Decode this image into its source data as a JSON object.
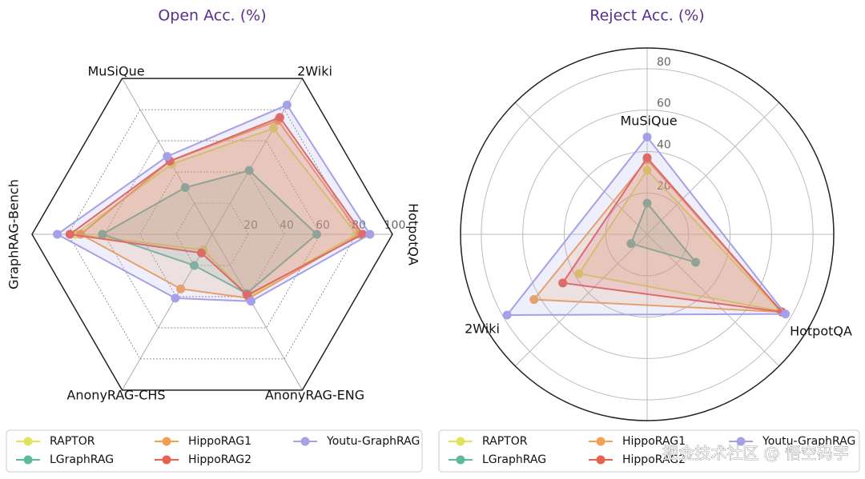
{
  "chart_data": [
    {
      "type": "radar",
      "title": "Open Acc. (%)",
      "grid_shape": "polygon",
      "categories": [
        "HotpotQA",
        "2Wiki",
        "MuSiQue",
        "GraphRAG-Bench",
        "AnonyRAG-CHS",
        "AnonyRAG-ENG"
      ],
      "rlim": [
        0,
        100
      ],
      "rticks": [
        20,
        40,
        60,
        80,
        100
      ],
      "legend": "bottom",
      "series": [
        {
          "name": "RAPTOR",
          "color": "#e2e35a",
          "values": [
            80,
            68,
            45,
            76,
            10,
            40
          ]
        },
        {
          "name": "LGraphRAG",
          "color": "#5fb8a0",
          "values": [
            58,
            41,
            30,
            61,
            20,
            38
          ]
        },
        {
          "name": "HippoRAG1",
          "color": "#f2a052",
          "values": [
            82,
            73,
            47,
            73,
            35,
            41
          ]
        },
        {
          "name": "HippoRAG2",
          "color": "#e8604e",
          "values": [
            83.5,
            75,
            47,
            79,
            12,
            39
          ]
        },
        {
          "name": "Youtu-GraphRAG",
          "color": "#a6a0e8",
          "values": [
            87.5,
            83,
            50,
            86,
            41,
            43
          ]
        }
      ]
    },
    {
      "type": "radar",
      "title": "Reject Acc. (%)",
      "grid_shape": "circle",
      "categories": [
        "MuSiQue",
        "2Wiki",
        "HotpotQA"
      ],
      "rlim": [
        0,
        90
      ],
      "rticks": [
        20,
        40,
        60,
        80
      ],
      "legend": "bottom",
      "series": [
        {
          "name": "RAPTOR",
          "color": "#e2e35a",
          "values": [
            31,
            38,
            74
          ]
        },
        {
          "name": "LGraphRAG",
          "color": "#5fb8a0",
          "values": [
            15,
            9,
            27
          ]
        },
        {
          "name": "HippoRAG1",
          "color": "#f2a052",
          "values": [
            36,
            63,
            75
          ]
        },
        {
          "name": "HippoRAG2",
          "color": "#e8604e",
          "values": [
            37,
            47,
            75
          ]
        },
        {
          "name": "Youtu-GraphRAG",
          "color": "#a6a0e8",
          "values": [
            47,
            78,
            77
          ]
        }
      ]
    }
  ],
  "watermark": "掘金技术社区 @ 悟空码字"
}
